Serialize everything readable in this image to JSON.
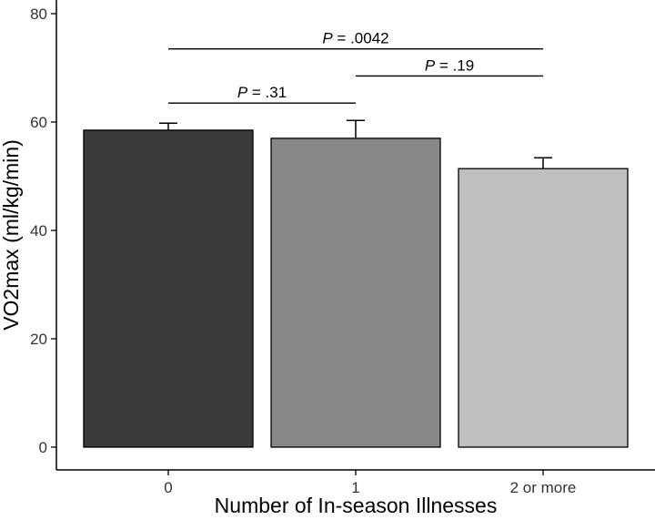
{
  "chart_data": {
    "type": "bar",
    "categories": [
      "0",
      "1",
      "2 or more"
    ],
    "values": [
      58.5,
      57.0,
      51.4
    ],
    "error_upper": [
      59.8,
      60.3,
      53.4
    ],
    "colors": [
      "#3a3a3a",
      "#888888",
      "#bfbfbf"
    ],
    "xlabel": "Number of In-season Illnesses",
    "ylabel": "VO2max (ml/kg/min)",
    "ylim": [
      0,
      80
    ],
    "yticks": [
      "0",
      "20",
      "40",
      "60",
      "80"
    ],
    "grid": false,
    "comparisons": [
      {
        "from": "0",
        "to": "1",
        "label_prefix": "P",
        "label_value": " = .31",
        "y": 63.5
      },
      {
        "from": "1",
        "to": "2 or more",
        "label_prefix": "P",
        "label_value": " = .19",
        "y": 68.5
      },
      {
        "from": "0",
        "to": "2 or more",
        "label_prefix": "P",
        "label_value": " = .0042",
        "y": 73.5
      }
    ]
  }
}
